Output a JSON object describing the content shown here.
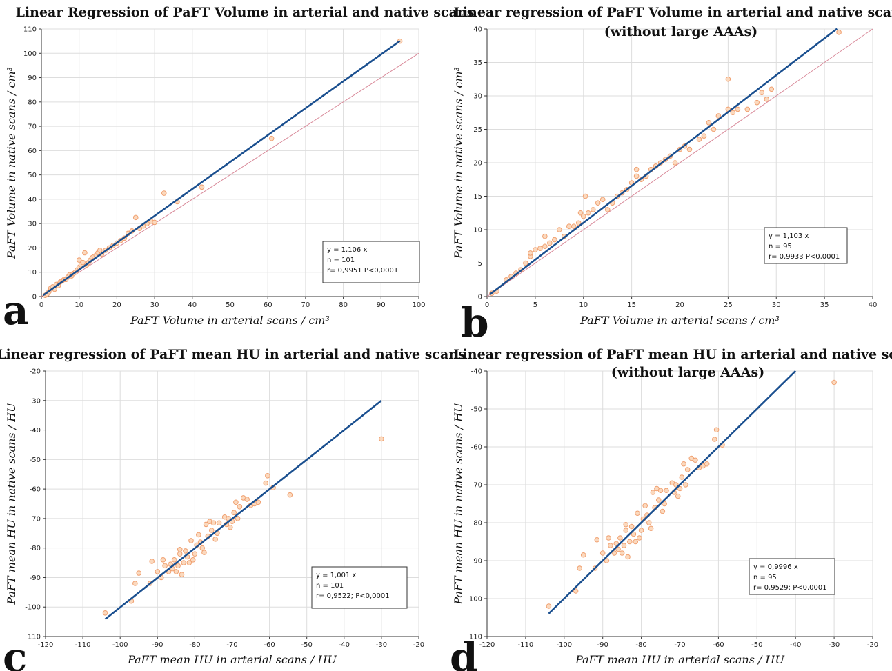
{
  "chart_data": [
    {
      "type": "scatter",
      "panel_letter": "a",
      "title": [
        "Linear Regression of PaFT Volume in arterial and native scans"
      ],
      "xlabel": "PaFT Volume in arterial scans / cm³",
      "ylabel": "PaFT Volume in native scans / cm³",
      "xlim": [
        0,
        100
      ],
      "ylim": [
        0,
        110
      ],
      "xticks": [
        0,
        10,
        20,
        30,
        40,
        50,
        60,
        70,
        80,
        90,
        100
      ],
      "yticks": [
        0,
        10,
        20,
        30,
        40,
        50,
        60,
        70,
        80,
        90,
        100,
        110
      ],
      "grid": true,
      "regression": {
        "slope": 1.106,
        "intercept": 0,
        "x_range": [
          0.5,
          95
        ]
      },
      "identity_line": {
        "x_range": [
          0,
          100
        ]
      },
      "stats": [
        "y = 1,106  x",
        "n = 101",
        "r= 0,9951  P<0,0001"
      ],
      "stats_position": "bottom-right",
      "colors": {
        "points": "#f0a070",
        "regression": "#1a4f8f",
        "identity": "#d98a9a"
      },
      "points": [
        [
          1,
          0.5
        ],
        [
          1.5,
          1
        ],
        [
          2,
          2
        ],
        [
          2.5,
          3.5
        ],
        [
          3,
          4
        ],
        [
          3.5,
          3
        ],
        [
          4,
          5
        ],
        [
          4.5,
          4.5
        ],
        [
          5,
          6
        ],
        [
          5.5,
          6.5
        ],
        [
          6,
          7
        ],
        [
          6.5,
          7
        ],
        [
          7,
          8
        ],
        [
          7.5,
          9
        ],
        [
          8,
          8.5
        ],
        [
          8.5,
          9.5
        ],
        [
          9,
          10
        ],
        [
          9.5,
          11
        ],
        [
          10,
          12
        ],
        [
          10,
          15
        ],
        [
          10.5,
          13
        ],
        [
          11,
          14
        ],
        [
          11.5,
          18
        ],
        [
          12,
          13
        ],
        [
          12.5,
          14
        ],
        [
          13,
          15
        ],
        [
          13.5,
          16
        ],
        [
          14,
          16.5
        ],
        [
          14.5,
          17
        ],
        [
          15,
          18
        ],
        [
          15.5,
          19
        ],
        [
          16,
          17.5
        ],
        [
          17,
          19
        ],
        [
          18,
          20
        ],
        [
          19,
          21
        ],
        [
          20,
          22
        ],
        [
          21,
          23
        ],
        [
          22,
          24
        ],
        [
          23,
          26
        ],
        [
          24,
          27
        ],
        [
          25,
          32.5
        ],
        [
          26,
          28
        ],
        [
          27,
          29
        ],
        [
          28,
          30
        ],
        [
          29,
          31
        ],
        [
          30,
          30.5
        ],
        [
          32.5,
          42.5
        ],
        [
          36,
          39
        ],
        [
          42.5,
          45
        ],
        [
          61,
          65
        ],
        [
          95,
          105
        ]
      ]
    },
    {
      "type": "scatter",
      "panel_letter": "b",
      "title": [
        "Linear regression of PaFT Volume in arterial and native scans",
        "(without large AAAs)"
      ],
      "xlabel": "PaFT Volume in arterial scans / cm³",
      "ylabel": "PaFT Volume in native scans / cm³",
      "xlim": [
        0,
        40
      ],
      "ylim": [
        0,
        40
      ],
      "xticks": [
        0,
        5,
        10,
        15,
        20,
        25,
        30,
        35,
        40
      ],
      "yticks": [
        0,
        5,
        10,
        15,
        20,
        25,
        30,
        35,
        40
      ],
      "grid": true,
      "regression": {
        "slope": 1.103,
        "intercept": 0,
        "x_range": [
          0.3,
          36.3
        ]
      },
      "identity_line": {
        "x_range": [
          0,
          40
        ]
      },
      "stats": [
        "y = 1,103  x",
        "n = 95",
        "r= 0,9933  P<0,0001"
      ],
      "stats_position": "bottom-right",
      "colors": {
        "points": "#f0a070",
        "regression": "#1a4f8f",
        "identity": "#d98a9a"
      },
      "points": [
        [
          0.5,
          0.5
        ],
        [
          1,
          0.8
        ],
        [
          2,
          2.5
        ],
        [
          2.5,
          3
        ],
        [
          3,
          3.5
        ],
        [
          3.5,
          4
        ],
        [
          4,
          5
        ],
        [
          4.5,
          6
        ],
        [
          4.5,
          6.5
        ],
        [
          5,
          7
        ],
        [
          5.5,
          7.2
        ],
        [
          6,
          7.5
        ],
        [
          6,
          9
        ],
        [
          6.5,
          8
        ],
        [
          7,
          8.5
        ],
        [
          7.5,
          10
        ],
        [
          8,
          9
        ],
        [
          8.5,
          10.5
        ],
        [
          9,
          10.5
        ],
        [
          9.5,
          11
        ],
        [
          9.7,
          12.5
        ],
        [
          10,
          12
        ],
        [
          10.2,
          15
        ],
        [
          10.5,
          12.5
        ],
        [
          11,
          13
        ],
        [
          11.5,
          14
        ],
        [
          12,
          14.5
        ],
        [
          12.5,
          13
        ],
        [
          13,
          14
        ],
        [
          13.5,
          15
        ],
        [
          14,
          15.5
        ],
        [
          14.5,
          16
        ],
        [
          15,
          17
        ],
        [
          15.5,
          18
        ],
        [
          15.5,
          19
        ],
        [
          16,
          17.5
        ],
        [
          16.5,
          18
        ],
        [
          17,
          19
        ],
        [
          17.5,
          19.5
        ],
        [
          18,
          20
        ],
        [
          18.5,
          20.5
        ],
        [
          19,
          21
        ],
        [
          19.5,
          20
        ],
        [
          20,
          22
        ],
        [
          20.5,
          22.5
        ],
        [
          21,
          22
        ],
        [
          22,
          23.5
        ],
        [
          22.5,
          24
        ],
        [
          23,
          26
        ],
        [
          23.5,
          25
        ],
        [
          24,
          27
        ],
        [
          25,
          28
        ],
        [
          25,
          32.5
        ],
        [
          25.5,
          27.5
        ],
        [
          26,
          28
        ],
        [
          27,
          28
        ],
        [
          28,
          29
        ],
        [
          28.5,
          30.5
        ],
        [
          29,
          29.5
        ],
        [
          29.5,
          31
        ],
        [
          36.5,
          39.5
        ]
      ]
    },
    {
      "type": "scatter",
      "panel_letter": "c",
      "title": [
        "Linear regression of PaFT mean HU in arterial and native scans"
      ],
      "xlabel": "PaFT mean HU in arterial scans / HU",
      "ylabel": "PaFT mean HU in native scans / HU",
      "xlim": [
        -120,
        -20
      ],
      "ylim": [
        -110,
        -20
      ],
      "xticks": [
        -120,
        -110,
        -100,
        -90,
        -80,
        -70,
        -60,
        -50,
        -40,
        -30,
        -20
      ],
      "yticks": [
        -110,
        -100,
        -90,
        -80,
        -70,
        -60,
        -50,
        -40,
        -30,
        -20
      ],
      "grid": true,
      "regression": {
        "slope": 1.001,
        "intercept": 0,
        "x_range": [
          -104,
          -30
        ]
      },
      "stats": [
        "y = 1,001  x",
        "n = 101",
        "r= 0,9522; P<0,0001"
      ],
      "stats_position": "bottom-right",
      "colors": {
        "points": "#f0a070",
        "regression": "#1a4f8f"
      },
      "points": [
        [
          -104,
          -102
        ],
        [
          -97,
          -98
        ],
        [
          -96,
          -92
        ],
        [
          -95,
          -88.5
        ],
        [
          -92,
          -92
        ],
        [
          -91.5,
          -84.5
        ],
        [
          -90,
          -88
        ],
        [
          -89,
          -90
        ],
        [
          -88.5,
          -84
        ],
        [
          -88,
          -86
        ],
        [
          -87,
          -88
        ],
        [
          -86.5,
          -85.5
        ],
        [
          -86,
          -87
        ],
        [
          -85.5,
          -84
        ],
        [
          -85,
          -88
        ],
        [
          -84.5,
          -86
        ],
        [
          -84,
          -82
        ],
        [
          -84,
          -80.5
        ],
        [
          -83.5,
          -89
        ],
        [
          -83,
          -85
        ],
        [
          -82.5,
          -81
        ],
        [
          -82,
          -83
        ],
        [
          -81.5,
          -85
        ],
        [
          -81,
          -77.5
        ],
        [
          -80.5,
          -84
        ],
        [
          -80,
          -82
        ],
        [
          -79.5,
          -79
        ],
        [
          -79,
          -75.5
        ],
        [
          -78.5,
          -78
        ],
        [
          -78,
          -80
        ],
        [
          -77.5,
          -81.5
        ],
        [
          -77,
          -72
        ],
        [
          -76.5,
          -76
        ],
        [
          -76,
          -71
        ],
        [
          -75.5,
          -74
        ],
        [
          -75,
          -71.5
        ],
        [
          -74.5,
          -77
        ],
        [
          -74,
          -75
        ],
        [
          -73.5,
          -71.5
        ],
        [
          -72,
          -69.5
        ],
        [
          -71.5,
          -72
        ],
        [
          -71,
          -70
        ],
        [
          -70.5,
          -73
        ],
        [
          -70,
          -71
        ],
        [
          -69.5,
          -68
        ],
        [
          -69,
          -64.5
        ],
        [
          -68.5,
          -70
        ],
        [
          -68,
          -66
        ],
        [
          -67,
          -63
        ],
        [
          -66,
          -63.5
        ],
        [
          -65,
          -65.5
        ],
        [
          -64,
          -65
        ],
        [
          -63,
          -64.5
        ],
        [
          -61,
          -58
        ],
        [
          -60.5,
          -55.5
        ],
        [
          -59,
          -59.5
        ],
        [
          -54.5,
          -62
        ],
        [
          -30,
          -43
        ]
      ]
    },
    {
      "type": "scatter",
      "panel_letter": "d",
      "title": [
        "Linear regression of PaFT mean HU in arterial and native scans",
        "(without large AAAs)"
      ],
      "xlabel": "PaFT mean HU in arterial scans / HU",
      "ylabel": "PaFT mean HU in native scans / HU",
      "xlim": [
        -120,
        -20
      ],
      "ylim": [
        -110,
        -40
      ],
      "xticks": [
        -120,
        -110,
        -100,
        -90,
        -80,
        -70,
        -60,
        -50,
        -40,
        -30,
        -20
      ],
      "yticks": [
        -110,
        -100,
        -90,
        -80,
        -70,
        -60,
        -50,
        -40
      ],
      "grid": true,
      "regression": {
        "slope": 0.9996,
        "intercept": 0,
        "x_range": [
          -104,
          -40
        ]
      },
      "stats": [
        "y = 0,9996  x",
        "n = 95",
        "r= 0,9529; P<0,0001"
      ],
      "stats_position": "bottom-right",
      "colors": {
        "points": "#f0a070",
        "regression": "#1a4f8f"
      },
      "points": [
        [
          -104,
          -102
        ],
        [
          -97,
          -98
        ],
        [
          -96,
          -92
        ],
        [
          -95,
          -88.5
        ],
        [
          -92,
          -92
        ],
        [
          -91.5,
          -84.5
        ],
        [
          -90,
          -88
        ],
        [
          -89,
          -90
        ],
        [
          -88.5,
          -84
        ],
        [
          -88,
          -86
        ],
        [
          -87,
          -88
        ],
        [
          -86.5,
          -85.5
        ],
        [
          -86,
          -87
        ],
        [
          -85.5,
          -84
        ],
        [
          -85,
          -88
        ],
        [
          -84.5,
          -86
        ],
        [
          -84,
          -82
        ],
        [
          -84,
          -80.5
        ],
        [
          -83.5,
          -89
        ],
        [
          -83,
          -85
        ],
        [
          -82.5,
          -81
        ],
        [
          -82,
          -83
        ],
        [
          -81.5,
          -85
        ],
        [
          -81,
          -77.5
        ],
        [
          -80.5,
          -84
        ],
        [
          -80,
          -82
        ],
        [
          -79.5,
          -79
        ],
        [
          -79,
          -75.5
        ],
        [
          -78.5,
          -78
        ],
        [
          -78,
          -80
        ],
        [
          -77.5,
          -81.5
        ],
        [
          -77,
          -72
        ],
        [
          -76.5,
          -76
        ],
        [
          -76,
          -71
        ],
        [
          -75.5,
          -74
        ],
        [
          -75,
          -71.5
        ],
        [
          -74.5,
          -77
        ],
        [
          -74,
          -75
        ],
        [
          -73.5,
          -71.5
        ],
        [
          -72,
          -69.5
        ],
        [
          -71.5,
          -72
        ],
        [
          -71,
          -70
        ],
        [
          -70.5,
          -73
        ],
        [
          -70,
          -71
        ],
        [
          -69.5,
          -68
        ],
        [
          -69,
          -64.5
        ],
        [
          -68.5,
          -70
        ],
        [
          -68,
          -66
        ],
        [
          -67,
          -63
        ],
        [
          -66,
          -63.5
        ],
        [
          -65,
          -65.5
        ],
        [
          -64,
          -65
        ],
        [
          -63,
          -64.5
        ],
        [
          -61,
          -58
        ],
        [
          -60.5,
          -55.5
        ],
        [
          -59,
          -59.5
        ],
        [
          -30,
          -43
        ]
      ]
    }
  ]
}
